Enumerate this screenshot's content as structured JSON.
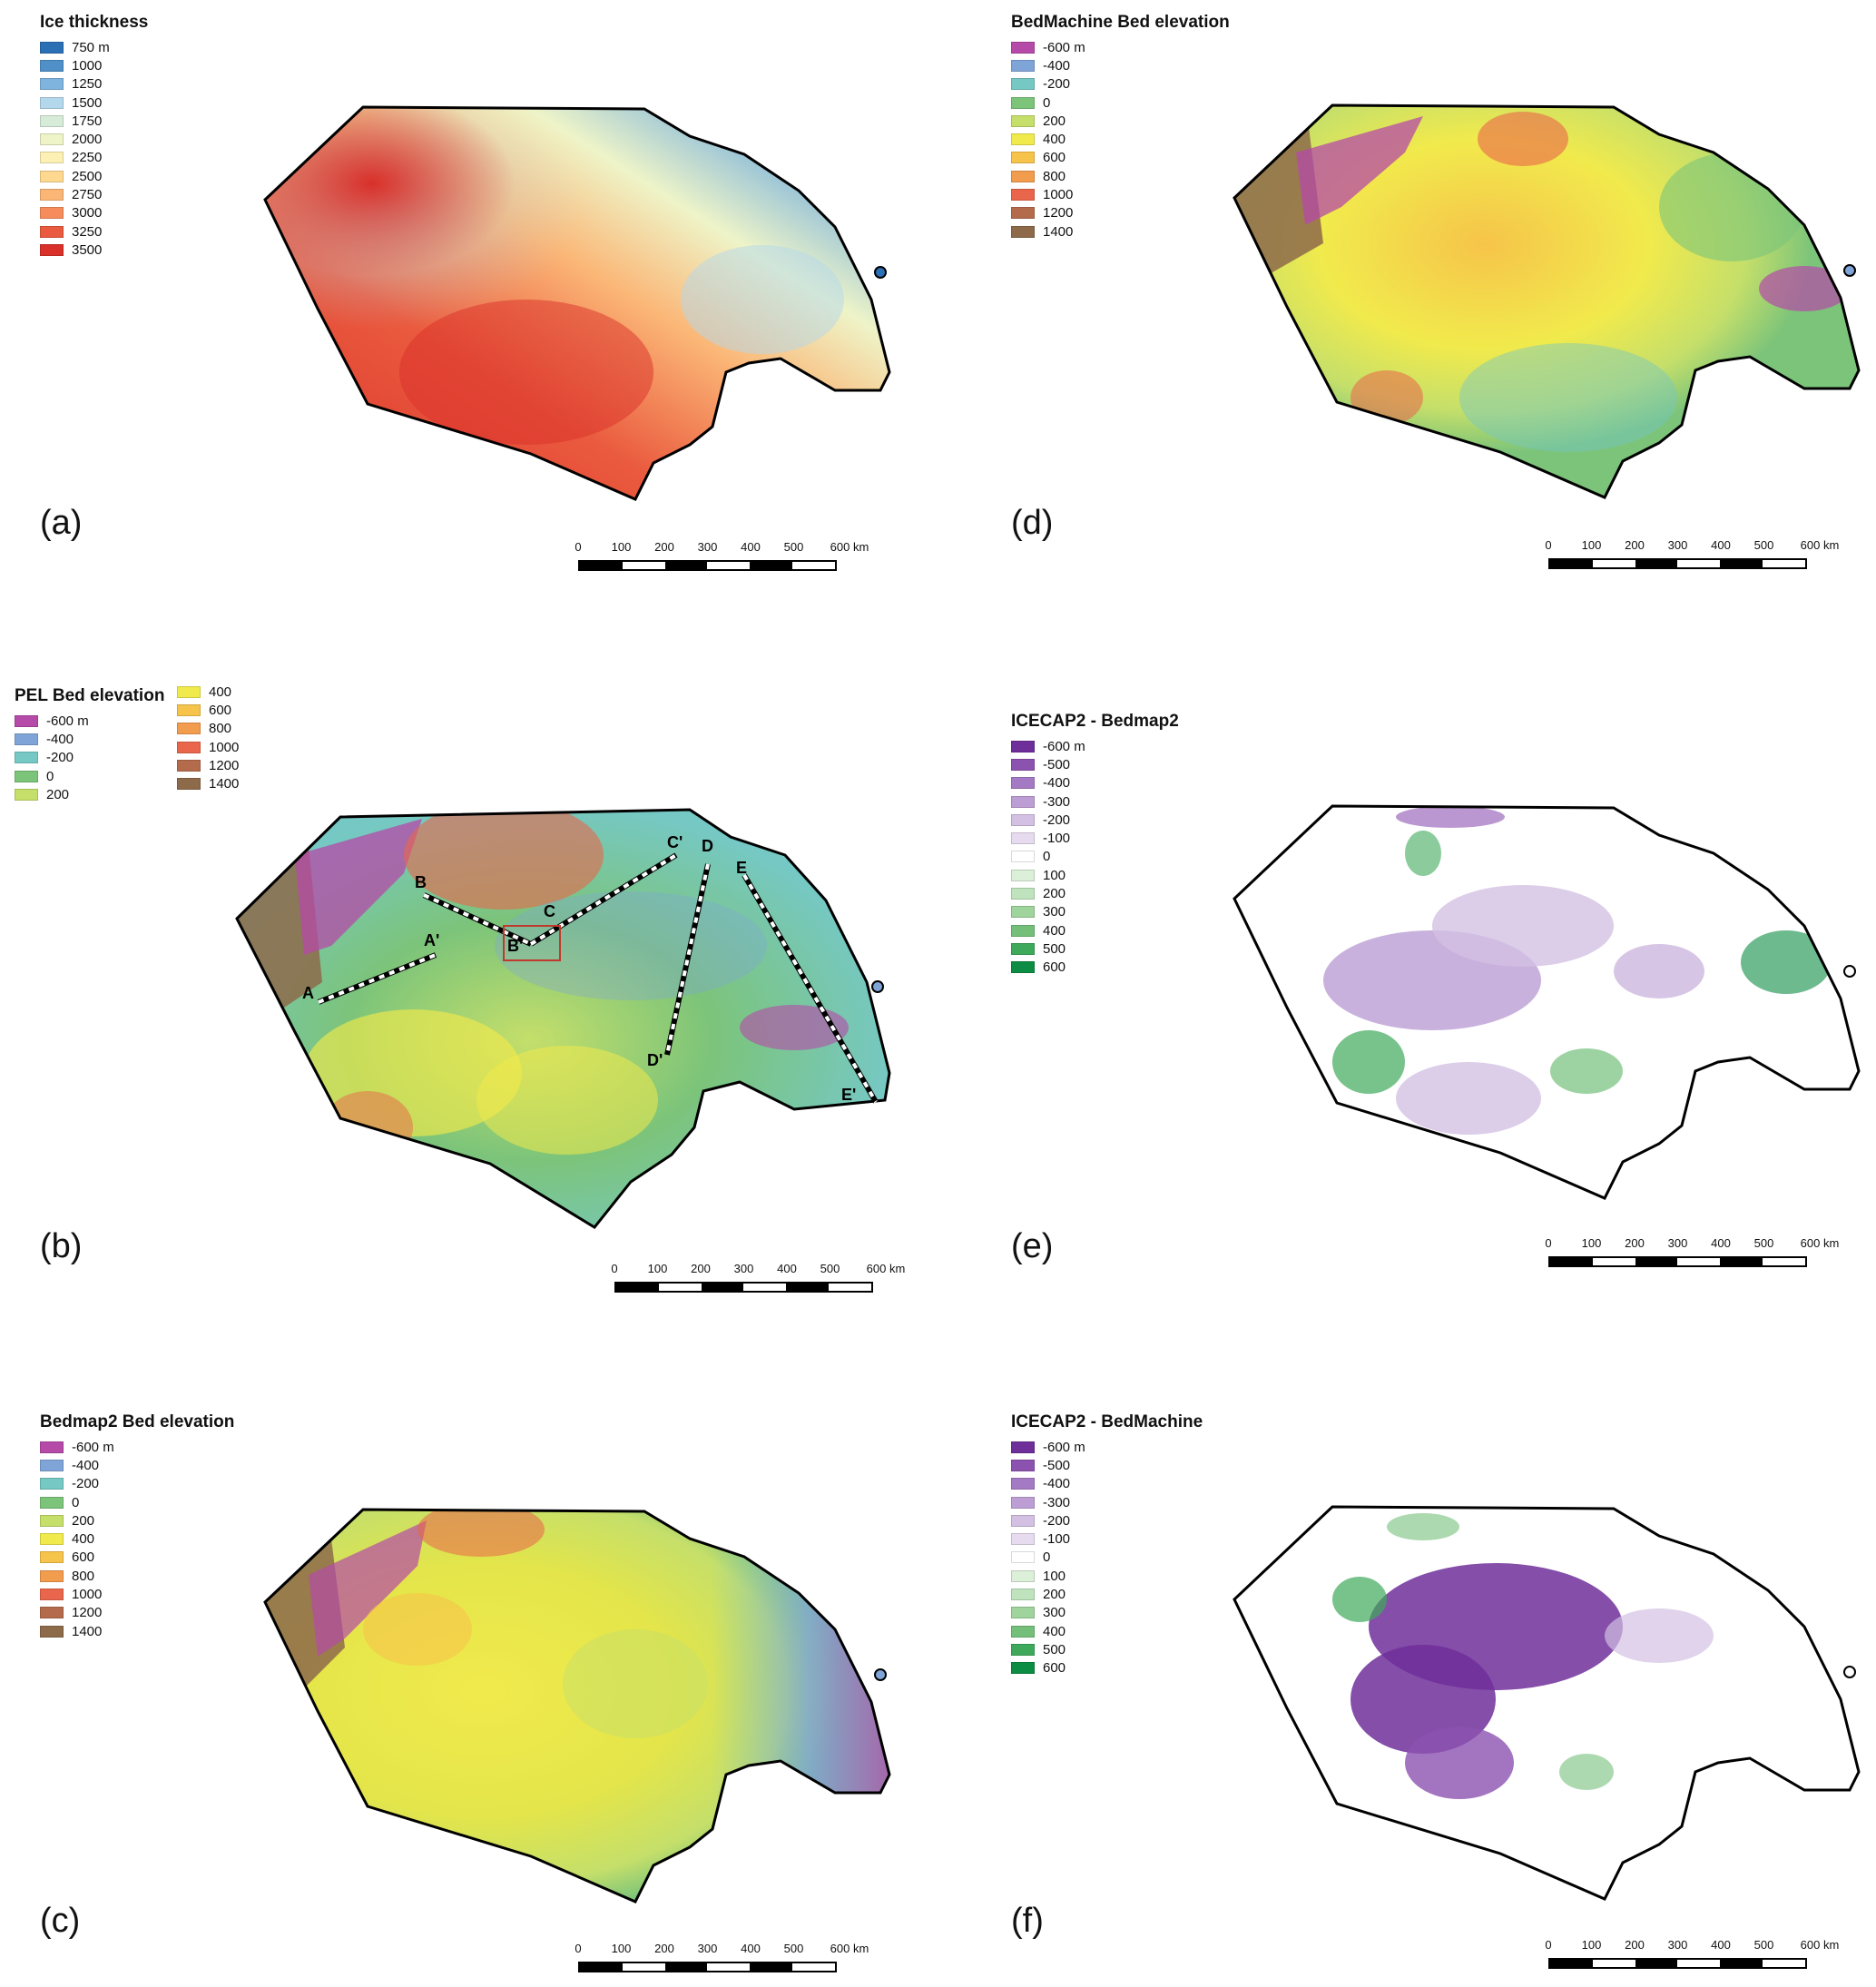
{
  "panels": {
    "a": {
      "label": "(a)",
      "legend_title": "Ice thickness",
      "legend": [
        {
          "text": "750 m",
          "color": "#2b6fb5"
        },
        {
          "text": "1000",
          "color": "#4f90c8"
        },
        {
          "text": "1250",
          "color": "#7eb4dd"
        },
        {
          "text": "1500",
          "color": "#b3d8ec"
        },
        {
          "text": "1750",
          "color": "#d6ecd8"
        },
        {
          "text": "2000",
          "color": "#eef4c8"
        },
        {
          "text": "2250",
          "color": "#fdf0b4"
        },
        {
          "text": "2500",
          "color": "#fdd88e"
        },
        {
          "text": "2750",
          "color": "#fbb676"
        },
        {
          "text": "3000",
          "color": "#f68c5c"
        },
        {
          "text": "3250",
          "color": "#ea5a3e"
        },
        {
          "text": "3500",
          "color": "#d9302a"
        }
      ],
      "scale_ticks": [
        "0",
        "100",
        "200",
        "300",
        "400",
        "500",
        "600 km"
      ]
    },
    "b": {
      "label": "(b)",
      "legend_title": "PEL Bed elevation",
      "legend_col1": [
        {
          "text": "-600 m",
          "color": "#b54aa8"
        },
        {
          "text": "-400",
          "color": "#7fa5d8"
        },
        {
          "text": "-200",
          "color": "#76c8c4"
        },
        {
          "text": "0",
          "color": "#7cc47a"
        },
        {
          "text": "200",
          "color": "#c5df6a"
        }
      ],
      "legend_col2": [
        {
          "text": "400",
          "color": "#f1ea4c"
        },
        {
          "text": "600",
          "color": "#f6c44a"
        },
        {
          "text": "800",
          "color": "#f29c4e"
        },
        {
          "text": "1000",
          "color": "#e9654b"
        },
        {
          "text": "1200",
          "color": "#b46b4c"
        },
        {
          "text": "1400",
          "color": "#8d6a4a"
        }
      ],
      "profile_labels": [
        "A",
        "A'",
        "B",
        "B'",
        "C",
        "C'",
        "D",
        "D'",
        "E",
        "E'"
      ],
      "scale_ticks": [
        "0",
        "100",
        "200",
        "300",
        "400",
        "500",
        "600 km"
      ]
    },
    "c": {
      "label": "(c)",
      "legend_title": "Bedmap2 Bed elevation",
      "legend": [
        {
          "text": "-600 m",
          "color": "#b54aa8"
        },
        {
          "text": "-400",
          "color": "#7fa5d8"
        },
        {
          "text": "-200",
          "color": "#76c8c4"
        },
        {
          "text": "0",
          "color": "#7cc47a"
        },
        {
          "text": "200",
          "color": "#c5df6a"
        },
        {
          "text": "400",
          "color": "#f1ea4c"
        },
        {
          "text": "600",
          "color": "#f6c44a"
        },
        {
          "text": "800",
          "color": "#f29c4e"
        },
        {
          "text": "1000",
          "color": "#e9654b"
        },
        {
          "text": "1200",
          "color": "#b46b4c"
        },
        {
          "text": "1400",
          "color": "#8d6a4a"
        }
      ],
      "scale_ticks": [
        "0",
        "100",
        "200",
        "300",
        "400",
        "500",
        "600 km"
      ]
    },
    "d": {
      "label": "(d)",
      "legend_title": "BedMachine Bed elevation",
      "legend": [
        {
          "text": "-600 m",
          "color": "#b54aa8"
        },
        {
          "text": "-400",
          "color": "#7fa5d8"
        },
        {
          "text": "-200",
          "color": "#76c8c4"
        },
        {
          "text": "0",
          "color": "#7cc47a"
        },
        {
          "text": "200",
          "color": "#c5df6a"
        },
        {
          "text": "400",
          "color": "#f1ea4c"
        },
        {
          "text": "600",
          "color": "#f6c44a"
        },
        {
          "text": "800",
          "color": "#f29c4e"
        },
        {
          "text": "1000",
          "color": "#e9654b"
        },
        {
          "text": "1200",
          "color": "#b46b4c"
        },
        {
          "text": "1400",
          "color": "#8d6a4a"
        }
      ],
      "scale_ticks": [
        "0",
        "100",
        "200",
        "300",
        "400",
        "500",
        "600 km"
      ]
    },
    "e": {
      "label": "(e)",
      "legend_title": "ICECAP2 - Bedmap2",
      "legend": [
        {
          "text": "-600 m",
          "color": "#6f2f9a"
        },
        {
          "text": "-500",
          "color": "#8c52b0"
        },
        {
          "text": "-400",
          "color": "#a57ac4"
        },
        {
          "text": "-300",
          "color": "#bc9ed4"
        },
        {
          "text": "-200",
          "color": "#d3c0e3"
        },
        {
          "text": "-100",
          "color": "#e7dcef"
        },
        {
          "text": "0",
          "color": "#ffffff"
        },
        {
          "text": "100",
          "color": "#dcefd9"
        },
        {
          "text": "200",
          "color": "#bfe3bc"
        },
        {
          "text": "300",
          "color": "#9fd49c"
        },
        {
          "text": "400",
          "color": "#74c07a"
        },
        {
          "text": "500",
          "color": "#3ea95a"
        },
        {
          "text": "600",
          "color": "#0d8c44"
        }
      ],
      "scale_ticks": [
        "0",
        "100",
        "200",
        "300",
        "400",
        "500",
        "600 km"
      ]
    },
    "f": {
      "label": "(f)",
      "legend_title": "ICECAP2 - BedMachine",
      "legend": [
        {
          "text": "-600 m",
          "color": "#6f2f9a"
        },
        {
          "text": "-500",
          "color": "#8c52b0"
        },
        {
          "text": "-400",
          "color": "#a57ac4"
        },
        {
          "text": "-300",
          "color": "#bc9ed4"
        },
        {
          "text": "-200",
          "color": "#d3c0e3"
        },
        {
          "text": "-100",
          "color": "#e7dcef"
        },
        {
          "text": "0",
          "color": "#ffffff"
        },
        {
          "text": "100",
          "color": "#dcefd9"
        },
        {
          "text": "200",
          "color": "#bfe3bc"
        },
        {
          "text": "300",
          "color": "#9fd49c"
        },
        {
          "text": "400",
          "color": "#74c07a"
        },
        {
          "text": "500",
          "color": "#3ea95a"
        },
        {
          "text": "600",
          "color": "#0d8c44"
        }
      ],
      "scale_ticks": [
        "0",
        "100",
        "200",
        "300",
        "400",
        "500",
        "600 km"
      ]
    }
  }
}
